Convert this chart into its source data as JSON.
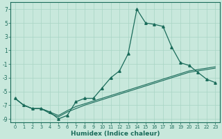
{
  "xlabel": "Humidex (Indice chaleur)",
  "ylabel": "",
  "xlim": [
    -0.5,
    23.5
  ],
  "ylim": [
    -9.5,
    8.0
  ],
  "yticks": [
    7,
    5,
    3,
    1,
    -1,
    -3,
    -5,
    -7,
    -9
  ],
  "xticks": [
    0,
    1,
    2,
    3,
    4,
    5,
    6,
    7,
    8,
    9,
    10,
    11,
    12,
    13,
    14,
    15,
    16,
    17,
    18,
    19,
    20,
    21,
    22,
    23
  ],
  "bg_color": "#c8e8dc",
  "line_color": "#1a6b5a",
  "grid_color": "#a8d4c4",
  "x_main": [
    0,
    1,
    2,
    3,
    4,
    5,
    6,
    7,
    8,
    9,
    10,
    11,
    12,
    13,
    14,
    15,
    16,
    17,
    18,
    19,
    20,
    21,
    22,
    23
  ],
  "y_main": [
    -6.0,
    -7.0,
    -7.5,
    -7.5,
    -8.0,
    -9.0,
    -8.5,
    -6.5,
    -6.0,
    -6.0,
    -4.5,
    -3.0,
    -2.0,
    0.5,
    7.0,
    5.0,
    4.8,
    4.5,
    1.5,
    -0.8,
    -1.2,
    -2.2,
    -3.2,
    -3.7
  ],
  "x_flat1": [
    0,
    1,
    2,
    3,
    4,
    5,
    6,
    7,
    8,
    9,
    10,
    11,
    12,
    13,
    14,
    15,
    16,
    17,
    18,
    19,
    20,
    21,
    22,
    23
  ],
  "y_flat1": [
    -6.0,
    -7.0,
    -7.5,
    -7.5,
    -8.0,
    -8.5,
    -7.8,
    -7.2,
    -6.8,
    -6.4,
    -6.0,
    -5.6,
    -5.2,
    -4.8,
    -4.4,
    -4.0,
    -3.6,
    -3.2,
    -2.8,
    -2.4,
    -2.0,
    -1.8,
    -1.6,
    -1.4
  ],
  "x_flat2": [
    0,
    1,
    2,
    3,
    4,
    5,
    6,
    7,
    8,
    9,
    10,
    11,
    12,
    13,
    14,
    15,
    16,
    17,
    18,
    19,
    20,
    21,
    22,
    23
  ],
  "y_flat2": [
    -6.0,
    -7.0,
    -7.5,
    -7.5,
    -8.2,
    -8.7,
    -8.0,
    -7.5,
    -7.0,
    -6.6,
    -6.2,
    -5.8,
    -5.4,
    -5.0,
    -4.6,
    -4.2,
    -3.8,
    -3.4,
    -3.0,
    -2.6,
    -2.2,
    -2.0,
    -1.8,
    -1.6
  ]
}
